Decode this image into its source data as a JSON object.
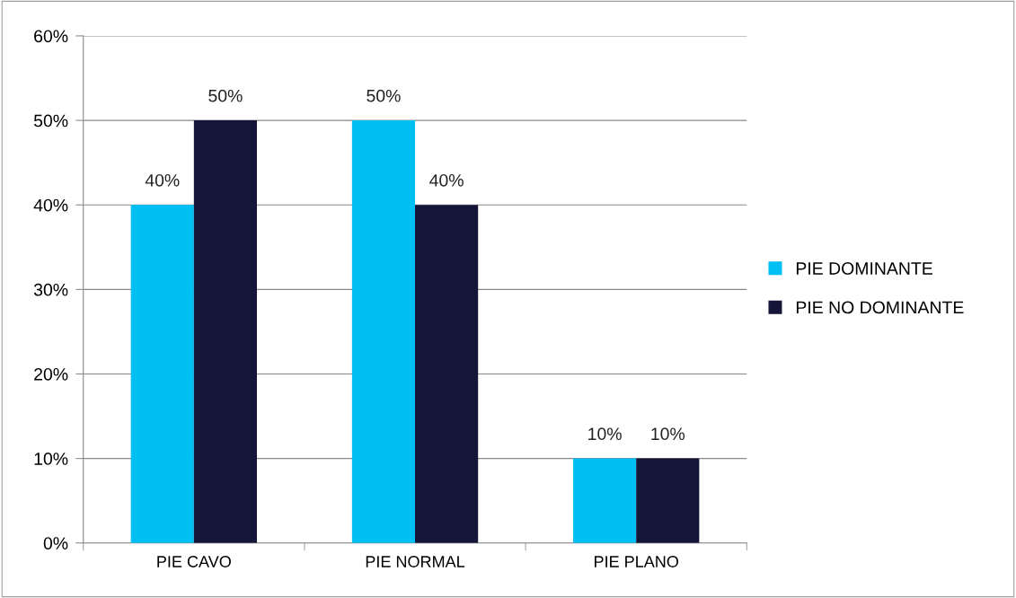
{
  "chart_data": {
    "type": "bar",
    "categories": [
      "PIE CAVO",
      "PIE NORMAL",
      "PIE PLANO"
    ],
    "series": [
      {
        "name": "PIE DOMINANTE",
        "color": "#00bff3",
        "values": [
          40,
          50,
          10
        ],
        "value_labels": [
          "40%",
          "50%",
          "10%"
        ]
      },
      {
        "name": "PIE NO DOMINANTE",
        "color": "#141538",
        "values": [
          50,
          40,
          10
        ],
        "value_labels": [
          "50%",
          "40%",
          "10%"
        ]
      }
    ],
    "ylim": [
      0,
      60
    ],
    "yticks": [
      {
        "value": 0,
        "label": "0%"
      },
      {
        "value": 10,
        "label": "10%"
      },
      {
        "value": 20,
        "label": "20%"
      },
      {
        "value": 30,
        "label": "30%"
      },
      {
        "value": 40,
        "label": "40%"
      },
      {
        "value": 50,
        "label": "50%"
      },
      {
        "value": 60,
        "label": "60%"
      }
    ],
    "grid": "y",
    "legend": "right"
  }
}
